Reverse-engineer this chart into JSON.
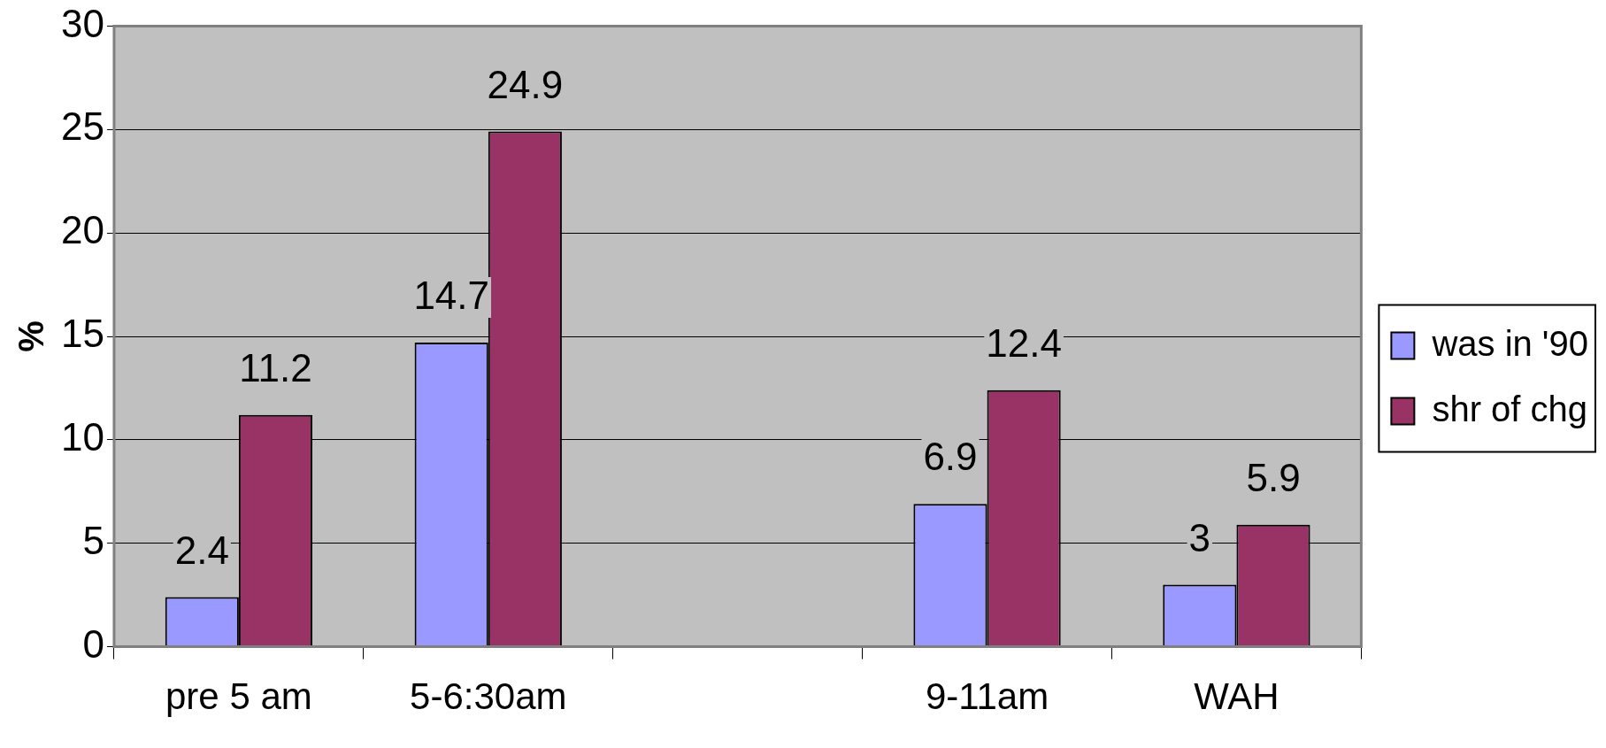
{
  "chart_data": {
    "type": "bar",
    "ylabel": "%",
    "categories": [
      "pre 5 am",
      "5-6:30am",
      null,
      "9-11am",
      "WAH"
    ],
    "series": [
      {
        "name": "was in '90",
        "color": "#9999ff",
        "values": [
          2.4,
          14.7,
          null,
          6.9,
          3
        ]
      },
      {
        "name": "shr of chg",
        "color": "#993366",
        "values": [
          11.2,
          24.9,
          null,
          12.4,
          5.9
        ]
      }
    ],
    "ylim": [
      0,
      30
    ],
    "yticks": [
      0,
      5,
      10,
      15,
      20,
      25,
      30
    ],
    "grid": "y",
    "legend": "right",
    "data_labels": true
  }
}
